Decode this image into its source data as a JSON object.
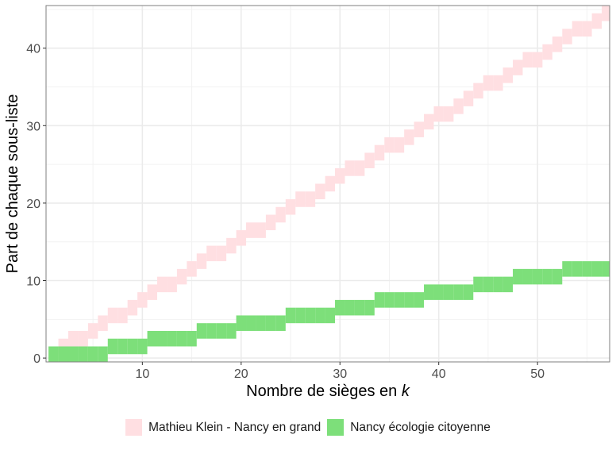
{
  "chart_data": {
    "type": "bar",
    "subtype": "staircase-range-tiles",
    "title": "",
    "xlabel": "Nombre de sièges en k",
    "xlabel_plain": "Nombre de sièges en ",
    "xlabel_italic": "k",
    "ylabel": "Part de chaque sous-liste",
    "xlim": [
      0.25,
      57.3
    ],
    "ylim": [
      -0.5,
      45.5
    ],
    "x_ticks": [
      10,
      20,
      30,
      40,
      50
    ],
    "y_ticks": [
      0,
      10,
      20,
      30,
      40
    ],
    "x_minor": [
      5,
      15,
      25,
      35,
      45,
      55
    ],
    "y_minor": [
      5,
      15,
      25,
      35,
      45
    ],
    "grid": true,
    "legend_position": "bottom",
    "tile": {
      "x_half_width": 0.5,
      "y_below": 0.5,
      "y_above": 1.5
    },
    "x": [
      1,
      2,
      3,
      4,
      5,
      6,
      7,
      8,
      9,
      10,
      11,
      12,
      13,
      14,
      15,
      16,
      17,
      18,
      19,
      20,
      21,
      22,
      23,
      24,
      25,
      26,
      27,
      28,
      29,
      30,
      31,
      32,
      33,
      34,
      35,
      36,
      37,
      38,
      39,
      40,
      41,
      42,
      43,
      44,
      45,
      46,
      47,
      48,
      49,
      50,
      51,
      52,
      53,
      54,
      55,
      56,
      57
    ],
    "series": [
      {
        "name": "Mathieu Klein - Nancy en grand",
        "color": "#ffdfe2",
        "values": [
          0,
          1,
          2,
          2,
          3,
          4,
          5,
          5,
          6,
          7,
          8,
          9,
          9,
          10,
          11,
          12,
          13,
          13,
          14,
          15,
          16,
          16,
          17,
          18,
          19,
          20,
          20,
          21,
          22,
          23,
          24,
          24,
          25,
          26,
          27,
          27,
          28,
          29,
          30,
          31,
          31,
          32,
          33,
          34,
          35,
          35,
          36,
          37,
          38,
          38,
          39,
          40,
          41,
          42,
          42,
          43,
          44
        ]
      },
      {
        "name": "Nancy écologie citoyenne",
        "color": "#7ddf7a",
        "values": [
          0,
          0,
          0,
          0,
          0,
          0,
          1,
          1,
          1,
          1,
          2,
          2,
          2,
          2,
          2,
          3,
          3,
          3,
          3,
          4,
          4,
          4,
          4,
          4,
          5,
          5,
          5,
          5,
          5,
          6,
          6,
          6,
          6,
          7,
          7,
          7,
          7,
          7,
          8,
          8,
          8,
          8,
          8,
          9,
          9,
          9,
          9,
          10,
          10,
          10,
          10,
          10,
          11,
          11,
          11,
          11,
          11
        ]
      }
    ]
  },
  "legend": {
    "items": [
      {
        "label": "Mathieu Klein - Nancy en grand",
        "color": "#ffdfe2"
      },
      {
        "label": "Nancy écologie citoyenne",
        "color": "#7ddf7a"
      }
    ]
  }
}
